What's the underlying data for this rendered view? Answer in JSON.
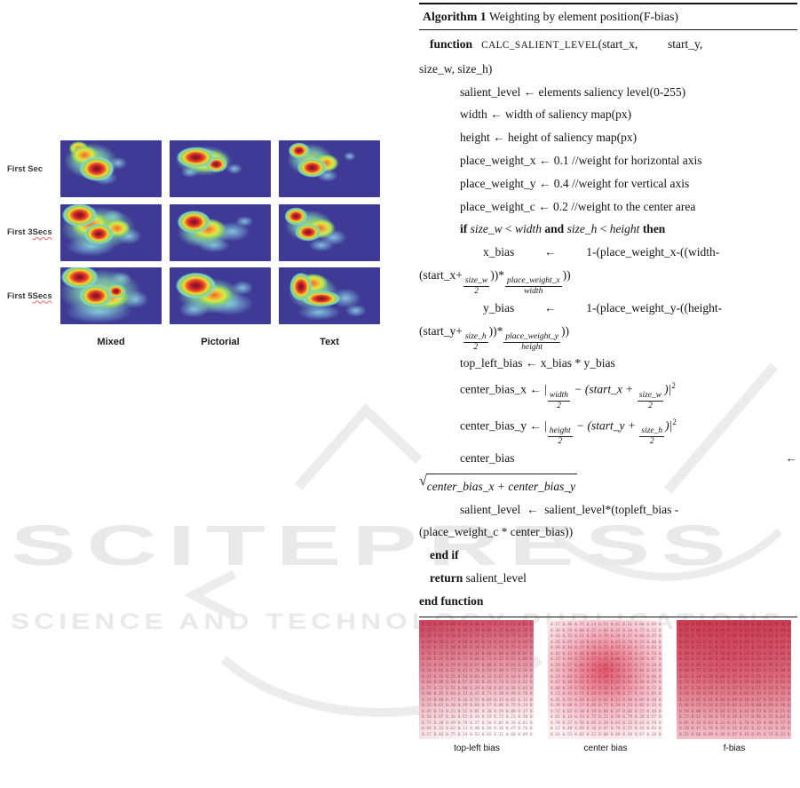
{
  "watermark": {
    "line1": "SCITEPRESS",
    "line2": "SCIENCE AND TECHNOLOGY PUBLICATIONS",
    "color": "#e9e9e9"
  },
  "figure_left": {
    "rows": [
      {
        "text": "First Sec",
        "mark": ""
      },
      {
        "text": "First 3 ",
        "mark": "Secs"
      },
      {
        "text": "First 5 ",
        "mark": "Secs"
      }
    ],
    "columns": [
      "Mixed",
      "Pictorial",
      "Text"
    ],
    "heatmap_bg": "#3e3a96",
    "palette": {
      "hot": "#6e1420 0%, #c41f2a 26%, #ee5a24 44%, #f2d93e 60%, #98d14d 74%, #7fd9d4 87%, rgba(100,205,225,0) 100%",
      "warm": "#ee6a2a 0%, #f2c036 38%, #d8e84c 58%, #93d55e 76%, rgba(110,210,220,0) 100%",
      "green": "rgba(190,228,92,0.95) 0%, rgba(128,214,176,0.75) 55%, rgba(100,205,230,0) 100%",
      "cyan": "rgba(142,219,235,0.85) 0%, rgba(110,200,235,0) 100%"
    },
    "heatmaps": [
      [
        [
          "hot",
          36,
          50,
          20,
          14
        ],
        [
          "warm",
          24,
          26,
          16,
          11
        ],
        [
          "warm",
          18,
          14,
          11,
          8
        ],
        [
          "green",
          30,
          36,
          30,
          20
        ],
        [
          "cyan",
          57,
          40,
          10,
          7
        ],
        [
          "cyan",
          44,
          66,
          14,
          8
        ]
      ],
      [
        [
          "hot",
          26,
          30,
          22,
          12
        ],
        [
          "hot",
          46,
          42,
          13,
          9
        ],
        [
          "warm",
          36,
          36,
          26,
          13
        ],
        [
          "green",
          34,
          36,
          32,
          17
        ],
        [
          "cyan",
          64,
          50,
          9,
          6
        ],
        [
          "cyan",
          20,
          56,
          10,
          6
        ]
      ],
      [
        [
          "hot",
          20,
          18,
          12,
          9
        ],
        [
          "hot",
          33,
          48,
          17,
          11
        ],
        [
          "warm",
          47,
          40,
          14,
          10
        ],
        [
          "green",
          31,
          34,
          26,
          18
        ],
        [
          "cyan",
          70,
          28,
          7,
          5
        ],
        [
          "cyan",
          48,
          62,
          12,
          7
        ]
      ],
      [
        [
          "hot",
          19,
          19,
          20,
          13
        ],
        [
          "hot",
          38,
          52,
          17,
          12
        ],
        [
          "warm",
          56,
          42,
          15,
          10
        ],
        [
          "warm",
          30,
          36,
          22,
          14
        ],
        [
          "green",
          38,
          42,
          42,
          24
        ],
        [
          "cyan",
          30,
          74,
          28,
          11
        ],
        [
          "cyan",
          68,
          56,
          14,
          9
        ],
        [
          "cyan",
          52,
          22,
          12,
          8
        ]
      ],
      [
        [
          "hot",
          24,
          31,
          19,
          13
        ],
        [
          "warm",
          38,
          44,
          20,
          12
        ],
        [
          "green",
          34,
          50,
          30,
          17
        ],
        [
          "cyan",
          62,
          48,
          20,
          11
        ],
        [
          "cyan",
          44,
          72,
          18,
          8
        ],
        [
          "cyan",
          74,
          30,
          10,
          6
        ]
      ],
      [
        [
          "hot",
          17,
          21,
          13,
          10
        ],
        [
          "hot",
          29,
          49,
          15,
          10
        ],
        [
          "warm",
          41,
          42,
          17,
          11
        ],
        [
          "green",
          30,
          38,
          27,
          18
        ],
        [
          "cyan",
          54,
          58,
          15,
          9
        ],
        [
          "cyan",
          42,
          72,
          14,
          7
        ]
      ],
      [
        [
          "hot",
          19,
          17,
          21,
          13
        ],
        [
          "hot",
          35,
          50,
          19,
          13
        ],
        [
          "hot",
          55,
          42,
          11,
          8
        ],
        [
          "warm",
          47,
          52,
          24,
          13
        ],
        [
          "green",
          40,
          44,
          46,
          26
        ],
        [
          "cyan",
          38,
          78,
          38,
          13
        ],
        [
          "cyan",
          74,
          56,
          15,
          10
        ],
        [
          "cyan",
          60,
          20,
          12,
          8
        ]
      ],
      [
        [
          "hot",
          26,
          32,
          23,
          15
        ],
        [
          "warm",
          44,
          49,
          21,
          12
        ],
        [
          "green",
          40,
          50,
          36,
          20
        ],
        [
          "cyan",
          60,
          64,
          26,
          13
        ],
        [
          "cyan",
          24,
          74,
          17,
          9
        ],
        [
          "cyan",
          72,
          36,
          12,
          8
        ]
      ],
      [
        [
          "hot",
          22,
          34,
          13,
          16
        ],
        [
          "hot",
          42,
          55,
          22,
          9
        ],
        [
          "warm",
          34,
          28,
          17,
          11
        ],
        [
          "green",
          34,
          44,
          28,
          20
        ],
        [
          "cyan",
          66,
          54,
          17,
          11
        ],
        [
          "cyan",
          40,
          79,
          24,
          9
        ],
        [
          "cyan",
          76,
          76,
          12,
          7
        ]
      ]
    ]
  },
  "algorithm": {
    "title_label": "Algorithm 1",
    "title_rest": " Weighting by element position(F-bias)",
    "lines": [
      {
        "ind": "i1",
        "segs": [
          [
            "kw",
            "function   "
          ],
          [
            "sc",
            "CALC_SALIENT_LEVEL"
          ],
          [
            "txt",
            "(start_x,          start_y,"
          ]
        ]
      },
      {
        "ind": "i0",
        "segs": [
          [
            "txt",
            "size_w, size_h)"
          ]
        ]
      },
      {
        "ind": "i2",
        "segs": [
          [
            "txt",
            "salient_level ← elements saliency level(0-255)"
          ]
        ]
      },
      {
        "ind": "i2",
        "segs": [
          [
            "txt",
            "width ← width of saliency map(px)"
          ]
        ]
      },
      {
        "ind": "i2",
        "segs": [
          [
            "txt",
            "height ← height of saliency map(px)"
          ]
        ]
      },
      {
        "ind": "i2",
        "segs": [
          [
            "txt",
            "place_weight_x ← 0.1 //weight for horizontal axis"
          ]
        ]
      },
      {
        "ind": "i2",
        "segs": [
          [
            "txt",
            "place_weight_y ← 0.4 //weight for vertical axis"
          ]
        ]
      },
      {
        "ind": "i2",
        "segs": [
          [
            "txt",
            "place_weight_c ← 0.2 //weight to the center area"
          ]
        ]
      },
      {
        "ind": "i2",
        "segs": [
          [
            "kw",
            "if "
          ],
          [
            "it",
            "size_w "
          ],
          [
            "txt",
            "< "
          ],
          [
            "it",
            "width "
          ],
          [
            "kw",
            "and "
          ],
          [
            "it",
            "size_h "
          ],
          [
            "txt",
            "< "
          ],
          [
            "it",
            "height "
          ],
          [
            "kw",
            "then"
          ]
        ]
      },
      {
        "ind": "i3",
        "segs": [
          [
            "txt",
            "x_bias          ←          1-(place_weight_x-((width-"
          ]
        ]
      },
      {
        "ind": "i0",
        "segs": [
          [
            "txt",
            "(start_x+"
          ],
          [
            "frac",
            "size_w",
            "2"
          ],
          [
            "txt",
            "))*"
          ],
          [
            "frac",
            "place_weight_x",
            "width"
          ],
          [
            "txt",
            "))"
          ]
        ]
      },
      {
        "ind": "i3",
        "segs": [
          [
            "txt",
            "y_bias          ←          1-(place_weight_y-((height-"
          ]
        ]
      },
      {
        "ind": "i0",
        "segs": [
          [
            "txt",
            "(start_y+"
          ],
          [
            "frac",
            "size_h",
            "2"
          ],
          [
            "txt",
            "))*"
          ],
          [
            "frac",
            "place_weight_y",
            "height"
          ],
          [
            "txt",
            "))"
          ]
        ]
      },
      {
        "ind": "i2",
        "segs": [
          [
            "txt",
            "top_left_bias ← x_bias * y_bias"
          ]
        ]
      },
      {
        "ind": "i2",
        "segs": [
          [
            "txt",
            "center_bias_x ← |"
          ],
          [
            "frac",
            "width",
            "2"
          ],
          [
            "it",
            " − (start_x + "
          ],
          [
            "frac",
            "size_w",
            "2"
          ],
          [
            "it",
            ")|"
          ],
          [
            "sup",
            "2"
          ]
        ]
      },
      {
        "ind": "i2",
        "segs": [
          [
            "txt",
            "center_bias_y ← |"
          ],
          [
            "frac",
            "height",
            "2"
          ],
          [
            "it",
            " − (start_y + "
          ],
          [
            "frac",
            "size_h",
            "2"
          ],
          [
            "it",
            ")|"
          ],
          [
            "sup",
            "2"
          ]
        ]
      },
      {
        "ind": "i2",
        "just": true,
        "segs": [
          [
            "txt",
            "center_bias"
          ],
          [
            "txt",
            "←"
          ]
        ]
      },
      {
        "ind": "i0",
        "segs": [
          [
            "sqrt",
            "center_bias_x + center_bias_y"
          ]
        ]
      },
      {
        "ind": "i2",
        "segs": [
          [
            "txt",
            "salient_level  ←  salient_level*(topleft_bias -"
          ]
        ]
      },
      {
        "ind": "i0",
        "segs": [
          [
            "txt",
            "(place_weight_c * center_bias))"
          ]
        ]
      },
      {
        "ind": "i1",
        "segs": [
          [
            "kw",
            "end if"
          ]
        ]
      },
      {
        "ind": "i1",
        "segs": [
          [
            "kw",
            "return "
          ],
          [
            "txt",
            "salient_level"
          ]
        ]
      },
      {
        "ind": "i0",
        "segs": [
          [
            "kw",
            "end function"
          ]
        ]
      }
    ]
  },
  "bias_figure": {
    "panels": [
      {
        "name": "top-left bias",
        "type": "topleft",
        "c_dark": "#cf4762",
        "c_mid": "#eba6b4",
        "c_light": "#fdf3f5"
      },
      {
        "name": "center bias",
        "type": "center",
        "c_dark": "#e2566c",
        "c_mid": "#f3b3c0",
        "c_light": "#fceff2"
      },
      {
        "name": "f-bias",
        "type": "fbias",
        "c_dark": "#cc3f55",
        "c_mid": "#dd6e80",
        "c_light": "#f3bfc9"
      }
    ]
  }
}
